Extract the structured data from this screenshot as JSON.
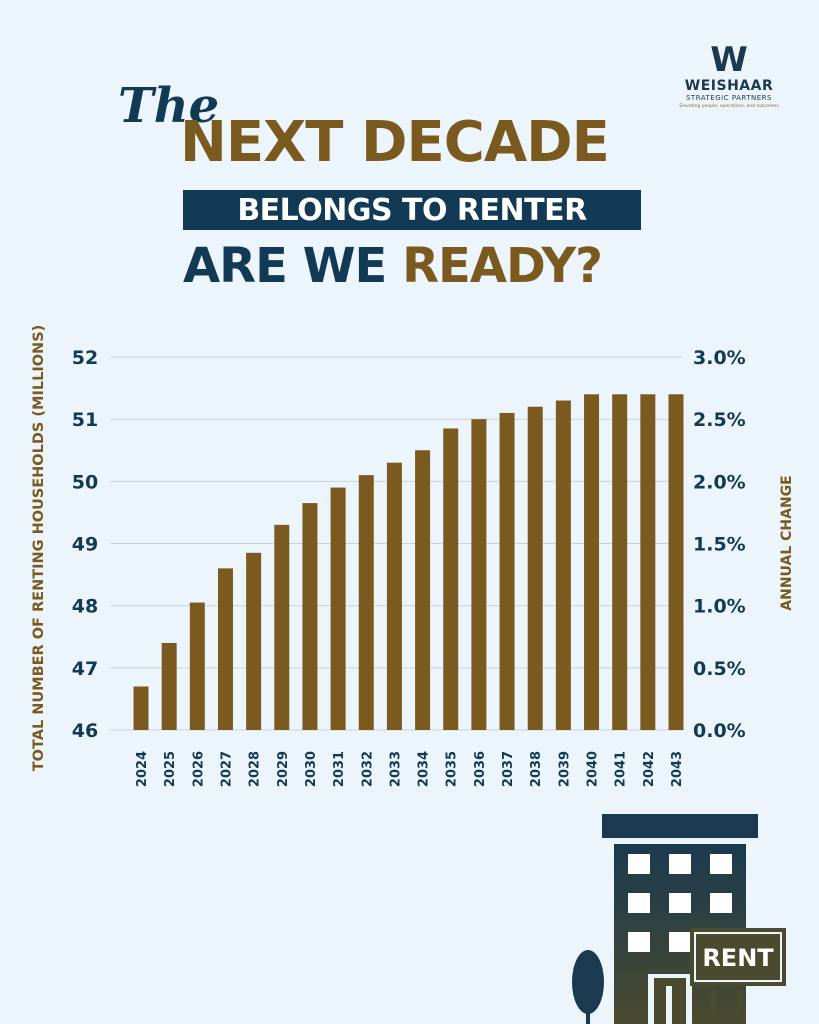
{
  "logo": {
    "mark": "W",
    "name": "WEISHAAR",
    "subtitle": "STRATEGIC PARTNERS",
    "tagline": "Elevating people, operations, and outcomes"
  },
  "headline": {
    "the": "The",
    "line1": "NEXT DECADE",
    "line2": "BELONGS TO RENTER",
    "line3_part1": "ARE WE ",
    "line3_part2": "READY?"
  },
  "sign": {
    "text": "RENT"
  },
  "colors": {
    "navy": "#123a55",
    "gold": "#7a5a1e",
    "background": "#edf5fc",
    "building": "#3f4b3d"
  },
  "chart_data": {
    "type": "bar",
    "ylabel": "TOTAL NUMBER OF RENTING HOUSEHOLDS (MILLIONS)",
    "y2label": "ANNUAL CHANGE",
    "ylim": [
      46,
      52
    ],
    "y2lim": [
      0,
      3
    ],
    "y_ticks": [
      "52",
      "51",
      "50",
      "49",
      "48",
      "47",
      "46"
    ],
    "y2_ticks": [
      "3.0%",
      "2.5%",
      "2.0%",
      "1.5%",
      "1.0%",
      "0.5%",
      "0.0%"
    ],
    "categories": [
      "2024",
      "2025",
      "2026",
      "2027",
      "2028",
      "2029",
      "2030",
      "2031",
      "2032",
      "2033",
      "2034",
      "2035",
      "2036",
      "2037",
      "2038",
      "2039",
      "2040",
      "2041",
      "2042",
      "2043"
    ],
    "values": [
      46.7,
      47.4,
      48.05,
      48.6,
      48.85,
      49.3,
      49.65,
      49.9,
      50.1,
      50.3,
      50.5,
      50.85,
      51.0,
      51.1,
      51.2,
      51.3,
      51.4,
      51.4,
      51.4,
      51.4
    ],
    "grid": true,
    "bar_color": "#7a5a1e"
  }
}
